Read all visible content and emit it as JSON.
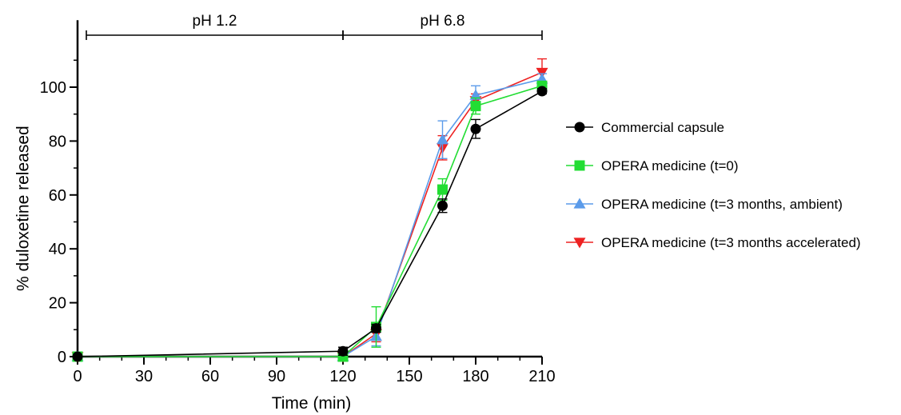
{
  "chart_data": {
    "type": "line",
    "title": "",
    "xlabel": "Time (min)",
    "ylabel": "% duloxetine released",
    "xlim": [
      0,
      210
    ],
    "ylim": [
      0,
      110
    ],
    "xticks": [
      0,
      30,
      60,
      90,
      120,
      150,
      180,
      210
    ],
    "yticks": [
      0,
      20,
      40,
      60,
      80,
      100
    ],
    "x_tick_labels": [
      "0",
      "30",
      "60",
      "90",
      "120",
      "150",
      "180",
      "210"
    ],
    "y_tick_labels": [
      "0",
      "20",
      "40",
      "60",
      "80",
      "100"
    ],
    "grid": false,
    "legend_position": "right",
    "phases": [
      {
        "label": "pH 1.2",
        "start": 0,
        "end": 120
      },
      {
        "label": "pH 6.8",
        "start": 120,
        "end": 210
      }
    ],
    "series": [
      {
        "name": "Commercial capsule",
        "color": "#000000",
        "marker": "circle",
        "points": [
          {
            "x": 0,
            "y": 0,
            "err": 0.5
          },
          {
            "x": 120,
            "y": 2,
            "err": 1.5
          },
          {
            "x": 135,
            "y": 10.5,
            "err": 1.5
          },
          {
            "x": 165,
            "y": 56,
            "err": 2.5
          },
          {
            "x": 180,
            "y": 84.5,
            "err": 3.5
          },
          {
            "x": 210,
            "y": 98.5,
            "err": 1
          }
        ]
      },
      {
        "name": "OPERA medicine (t=0)",
        "color": "#22dd33",
        "marker": "square",
        "points": [
          {
            "x": 0,
            "y": 0,
            "err": 0.5
          },
          {
            "x": 120,
            "y": 0,
            "err": 0.5
          },
          {
            "x": 135,
            "y": 11,
            "err": 7.5
          },
          {
            "x": 165,
            "y": 62,
            "err": 4
          },
          {
            "x": 180,
            "y": 93,
            "err": 3
          },
          {
            "x": 210,
            "y": 100.5,
            "err": 1.5
          }
        ]
      },
      {
        "name": "OPERA medicine (t=3 months, ambient)",
        "color": "#5b9bea",
        "marker": "triangle-up",
        "points": [
          {
            "x": 0,
            "y": 0,
            "err": 0.5
          },
          {
            "x": 120,
            "y": 0,
            "err": 0.5
          },
          {
            "x": 135,
            "y": 7.5,
            "err": 3.5
          },
          {
            "x": 165,
            "y": 80.5,
            "err": 7
          },
          {
            "x": 180,
            "y": 97,
            "err": 3.5
          },
          {
            "x": 210,
            "y": 103,
            "err": 2
          }
        ]
      },
      {
        "name": "OPERA medicine (t=3 months accelerated)",
        "color": "#ee2222",
        "marker": "triangle-down",
        "points": [
          {
            "x": 0,
            "y": 0,
            "err": 0.5
          },
          {
            "x": 120,
            "y": 0,
            "err": 0.5
          },
          {
            "x": 135,
            "y": 8.5,
            "err": 3
          },
          {
            "x": 165,
            "y": 77.5,
            "err": 4.5
          },
          {
            "x": 180,
            "y": 95,
            "err": 2.5
          },
          {
            "x": 210,
            "y": 105.5,
            "err": 5
          }
        ]
      }
    ]
  }
}
